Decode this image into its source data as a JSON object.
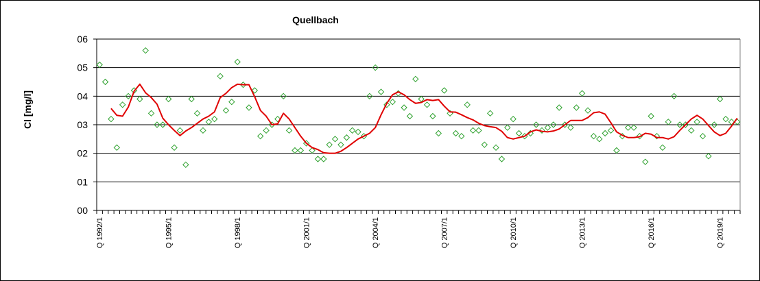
{
  "chart_data": {
    "type": "line",
    "title": "Quellbach",
    "xlabel": "",
    "ylabel": "Cl [mg/l]",
    "ylim": [
      0,
      6
    ],
    "y_ticks": [
      "00",
      "01",
      "02",
      "03",
      "04",
      "05",
      "06"
    ],
    "grid": "horizontal",
    "x_tick_labels": [
      "Q 1992/1",
      "Q 1995/1",
      "Q 1998/1",
      "Q 2001/1",
      "Q 2004/1",
      "Q 2007/1",
      "Q 2010/1",
      "Q 2013/1",
      "Q 2016/1",
      "Q 2019/1"
    ],
    "x_start": "1992/1",
    "x_end": "2019/4",
    "colors": {
      "markers": "#2ca02c",
      "line": "#e00000",
      "grid": "#000000"
    },
    "series": [
      {
        "type": "scatter",
        "marker": "diamond-open",
        "values": [
          5.1,
          4.5,
          3.2,
          2.2,
          3.7,
          4.0,
          4.2,
          3.9,
          5.6,
          3.4,
          3.0,
          3.0,
          3.9,
          2.2,
          2.8,
          1.6,
          3.9,
          3.4,
          2.8,
          3.1,
          3.2,
          4.7,
          3.5,
          3.8,
          5.2,
          4.4,
          3.6,
          4.2,
          2.6,
          2.8,
          3.0,
          3.2,
          4.0,
          2.8,
          2.1,
          2.1,
          2.35,
          2.1,
          1.8,
          1.8,
          2.3,
          2.5,
          2.3,
          2.55,
          2.8,
          2.75,
          2.6,
          4.0,
          5.0,
          4.15,
          3.7,
          3.8,
          4.1,
          3.6,
          3.3,
          4.6,
          3.9,
          3.7,
          3.3,
          2.7,
          4.2,
          3.4,
          2.7,
          2.6,
          3.7,
          2.8,
          2.8,
          2.3,
          3.4,
          2.2,
          1.8,
          2.9,
          3.2,
          2.7,
          2.6,
          2.7,
          3.0,
          2.8,
          2.9,
          3.0,
          3.6,
          3.0,
          2.9,
          3.6,
          4.1,
          3.5,
          2.6,
          2.5,
          2.7,
          2.8,
          2.1,
          2.6,
          2.9,
          2.9,
          2.6,
          1.7,
          3.3,
          2.6,
          2.2,
          3.1,
          4.0,
          3.0,
          3.0,
          2.8,
          3.1,
          2.6,
          1.9,
          3.0,
          3.9,
          3.2,
          3.1,
          3.1
        ]
      },
      {
        "type": "line",
        "start_quarter_index": 2,
        "values": [
          3.57,
          3.33,
          3.3,
          3.62,
          4.17,
          4.42,
          4.12,
          3.95,
          3.72,
          3.23,
          3.0,
          2.8,
          2.62,
          2.78,
          2.9,
          3.05,
          3.2,
          3.3,
          3.45,
          3.95,
          4.1,
          4.3,
          4.42,
          4.4,
          4.4,
          3.98,
          3.5,
          3.3,
          3.0,
          3.03,
          3.4,
          3.2,
          2.9,
          2.6,
          2.35,
          2.2,
          2.13,
          2.02,
          2.0,
          2.0,
          2.07,
          2.2,
          2.35,
          2.5,
          2.6,
          2.7,
          2.9,
          3.35,
          3.75,
          4.05,
          4.15,
          4.05,
          3.88,
          3.75,
          3.78,
          3.88,
          3.85,
          3.88,
          3.65,
          3.45,
          3.44,
          3.35,
          3.25,
          3.17,
          3.05,
          2.97,
          2.93,
          2.9,
          2.77,
          2.55,
          2.5,
          2.55,
          2.6,
          2.75,
          2.82,
          2.77,
          2.75,
          2.78,
          2.85,
          3.0,
          3.15,
          3.15,
          3.15,
          3.25,
          3.42,
          3.45,
          3.37,
          3.07,
          2.75,
          2.63,
          2.55,
          2.55,
          2.58,
          2.7,
          2.67,
          2.55,
          2.55,
          2.5,
          2.58,
          2.8,
          3.0,
          3.2,
          3.33,
          3.2,
          2.97,
          2.75,
          2.62,
          2.7,
          2.95,
          3.23
        ]
      }
    ]
  }
}
